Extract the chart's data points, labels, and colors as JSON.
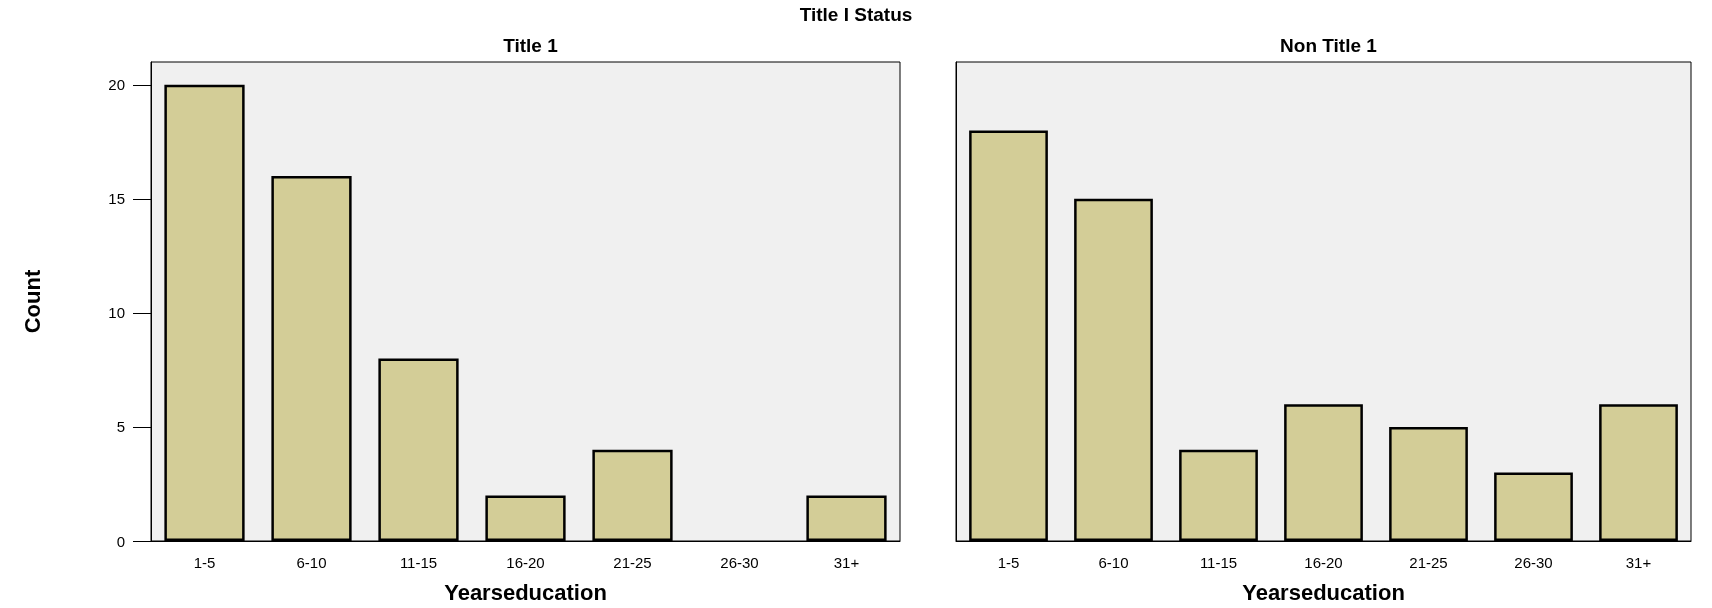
{
  "chart_data": [
    {
      "type": "bar",
      "title": "Title 1",
      "annotations": [
        "Title I Status"
      ],
      "xlabel": "Yearseducation",
      "ylabel": "Count",
      "categories": [
        "1-5",
        "6-10",
        "11-15",
        "16-20",
        "21-25",
        "26-30",
        "31+"
      ],
      "values": [
        20,
        16,
        8,
        2,
        4,
        0,
        2
      ],
      "color": "#d3cd97",
      "ylim": [
        0,
        21
      ],
      "yticks": [
        0,
        5,
        10,
        15,
        20
      ],
      "grid": false
    },
    {
      "type": "bar",
      "title": "Non Title 1",
      "xlabel": "Yearseducation",
      "categories": [
        "1-5",
        "6-10",
        "11-15",
        "16-20",
        "21-25",
        "26-30",
        "31+"
      ],
      "values": [
        18,
        15,
        4,
        6,
        5,
        3,
        6
      ],
      "color": "#d3cd97",
      "ylim": [
        0,
        21
      ],
      "yticks": [
        0,
        5,
        10,
        15,
        20
      ],
      "grid": false,
      "tick_labels": "x"
    }
  ]
}
